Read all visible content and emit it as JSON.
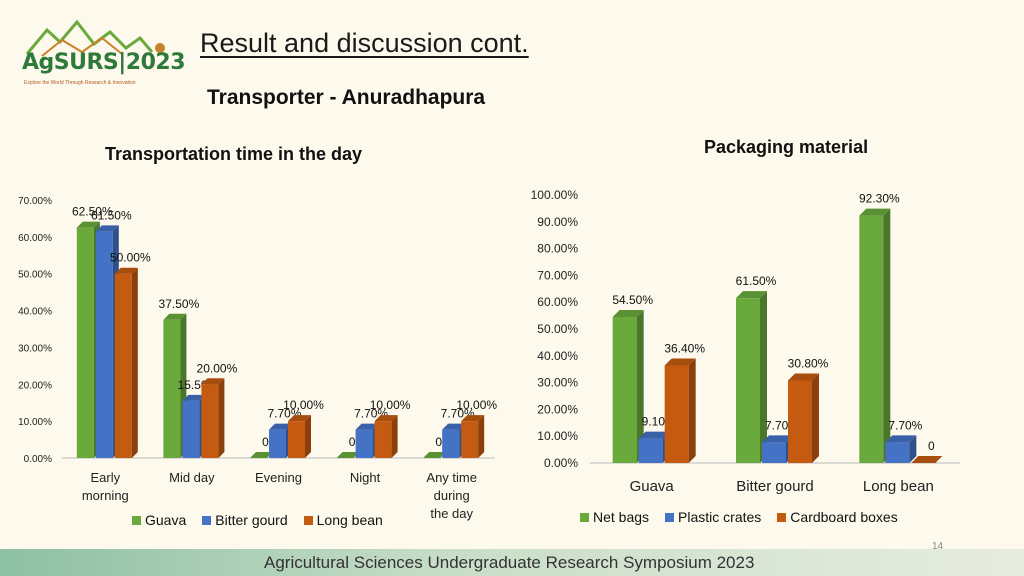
{
  "header": {
    "logo_text": "AgSURS|2023",
    "logo_tagline": "Explore the World Through Research & Innovation",
    "title": "Result and discussion cont.",
    "subtitle": "Transporter  - Anuradhapura"
  },
  "footer": {
    "text": "Agricultural Sciences Undergraduate Research Symposium 2023",
    "page_number": "14"
  },
  "colors": {
    "guava": "#6aaa3c",
    "bitter_gourd": "#4472c4",
    "long_bean": "#c55a11"
  },
  "chart_data": [
    {
      "type": "bar",
      "title": "Transportation time in the day",
      "categories": [
        "Early morning",
        "Mid day",
        "Evening",
        "Night",
        "Any time during the day"
      ],
      "series": [
        {
          "name": "Guava",
          "values": [
            0.625,
            0.375,
            0,
            0,
            0
          ],
          "labels": [
            "62.50%",
            "37.50%",
            "0",
            "0",
            "0"
          ]
        },
        {
          "name": "Bitter gourd",
          "values": [
            0.615,
            0.155,
            0.077,
            0.077,
            0.077
          ],
          "labels": [
            "61.50%",
            "15.50%",
            "7.70%",
            "7.70%",
            "7.70%"
          ]
        },
        {
          "name": "Long bean",
          "values": [
            0.5,
            0.2,
            0.1,
            0.1,
            0.1
          ],
          "labels": [
            "50.00%",
            "20.00%",
            "10.00%",
            "10.00%",
            "10.00%"
          ]
        }
      ],
      "yticks": [
        "0.00%",
        "10.00%",
        "20.00%",
        "30.00%",
        "40.00%",
        "50.00%",
        "60.00%",
        "70.00%"
      ],
      "ylim": [
        0,
        0.7
      ],
      "legend_position": "bottom"
    },
    {
      "type": "bar",
      "title": "Packaging material",
      "categories": [
        "Guava",
        "Bitter gourd",
        "Long bean"
      ],
      "series": [
        {
          "name": "Net bags",
          "values": [
            0.545,
            0.615,
            0.923
          ],
          "labels": [
            "54.50%",
            "61.50%",
            "92.30%"
          ]
        },
        {
          "name": "Plastic crates",
          "values": [
            0.091,
            0.077,
            0.077
          ],
          "labels": [
            "9.10%",
            "7.70%",
            "7.70%"
          ]
        },
        {
          "name": "Cardboard boxes",
          "values": [
            0.364,
            0.308,
            0
          ],
          "labels": [
            "36.40%",
            "30.80%",
            "0"
          ]
        }
      ],
      "yticks": [
        "0.00%",
        "10.00%",
        "20.00%",
        "30.00%",
        "40.00%",
        "50.00%",
        "60.00%",
        "70.00%",
        "80.00%",
        "90.00%",
        "100.00%"
      ],
      "ylim": [
        0,
        1.0
      ],
      "legend_position": "bottom"
    }
  ]
}
